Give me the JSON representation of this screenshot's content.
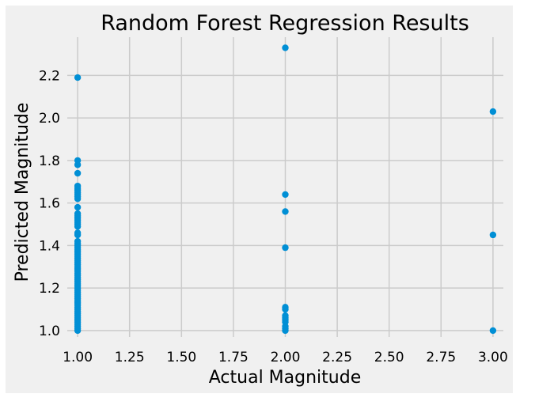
{
  "chart_data": {
    "type": "scatter",
    "title": "Random Forest Regression Results",
    "xlabel": "Actual Magnitude",
    "ylabel": "Predicted Magnitude",
    "xlim": [
      0.95,
      3.05
    ],
    "ylim": [
      0.97,
      2.38
    ],
    "xticks": [
      "1.00",
      "1.25",
      "1.50",
      "1.75",
      "2.00",
      "2.25",
      "2.50",
      "2.75",
      "3.00"
    ],
    "yticks": [
      "1.0",
      "1.2",
      "1.4",
      "1.6",
      "1.8",
      "2.0",
      "2.2"
    ],
    "grid": true,
    "colors": {
      "marker": "#008fd5",
      "background": "#f0f0f0",
      "grid": "#cbcbcb"
    },
    "points": [
      [
        1,
        2.19
      ],
      [
        1,
        1.8
      ],
      [
        1,
        1.78
      ],
      [
        1,
        1.74
      ],
      [
        1,
        1.68
      ],
      [
        1,
        1.67
      ],
      [
        1,
        1.66
      ],
      [
        1,
        1.65
      ],
      [
        1,
        1.64
      ],
      [
        1,
        1.63
      ],
      [
        1,
        1.62
      ],
      [
        1,
        1.58
      ],
      [
        1,
        1.55
      ],
      [
        1,
        1.54
      ],
      [
        1,
        1.53
      ],
      [
        1,
        1.52
      ],
      [
        1,
        1.51
      ],
      [
        1,
        1.5
      ],
      [
        1,
        1.49
      ],
      [
        1,
        1.46
      ],
      [
        1,
        1.45
      ],
      [
        1,
        1.42
      ],
      [
        1,
        1.41
      ],
      [
        1,
        1.4
      ],
      [
        1,
        1.39
      ],
      [
        1,
        1.38
      ],
      [
        1,
        1.37
      ],
      [
        1,
        1.36
      ],
      [
        1,
        1.35
      ],
      [
        1,
        1.34
      ],
      [
        1,
        1.33
      ],
      [
        1,
        1.32
      ],
      [
        1,
        1.31
      ],
      [
        1,
        1.3
      ],
      [
        1,
        1.29
      ],
      [
        1,
        1.28
      ],
      [
        1,
        1.27
      ],
      [
        1,
        1.26
      ],
      [
        1,
        1.25
      ],
      [
        1,
        1.24
      ],
      [
        1,
        1.23
      ],
      [
        1,
        1.22
      ],
      [
        1,
        1.21
      ],
      [
        1,
        1.2
      ],
      [
        1,
        1.19
      ],
      [
        1,
        1.18
      ],
      [
        1,
        1.17
      ],
      [
        1,
        1.16
      ],
      [
        1,
        1.15
      ],
      [
        1,
        1.14
      ],
      [
        1,
        1.13
      ],
      [
        1,
        1.12
      ],
      [
        1,
        1.11
      ],
      [
        1,
        1.1
      ],
      [
        1,
        1.09
      ],
      [
        1,
        1.08
      ],
      [
        1,
        1.07
      ],
      [
        1,
        1.06
      ],
      [
        1,
        1.05
      ],
      [
        1,
        1.04
      ],
      [
        1,
        1.03
      ],
      [
        1,
        1.02
      ],
      [
        1,
        1.01
      ],
      [
        1,
        1.0
      ],
      [
        2,
        2.33
      ],
      [
        2,
        1.64
      ],
      [
        2,
        1.56
      ],
      [
        2,
        1.39
      ],
      [
        2,
        1.11
      ],
      [
        2,
        1.1
      ],
      [
        2,
        1.07
      ],
      [
        2,
        1.06
      ],
      [
        2,
        1.05
      ],
      [
        2,
        1.04
      ],
      [
        2,
        1.02
      ],
      [
        2,
        1.01
      ],
      [
        2,
        1.0
      ],
      [
        3,
        2.03
      ],
      [
        3,
        1.45
      ],
      [
        3,
        1.0
      ]
    ]
  }
}
